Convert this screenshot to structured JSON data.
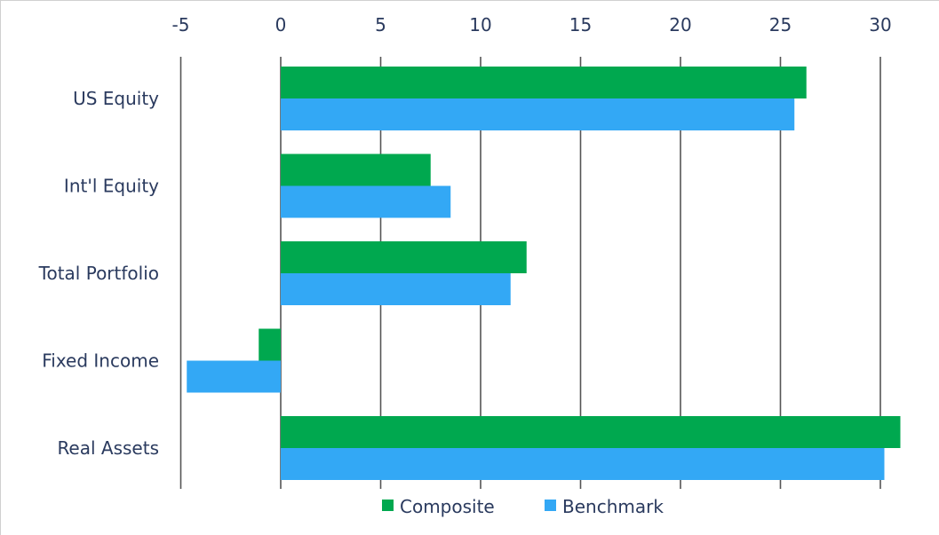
{
  "chart_data": {
    "type": "bar",
    "orientation": "horizontal",
    "categories": [
      "US Equity",
      "Int'l Equity",
      "Total Portfolio",
      "Fixed Income",
      "Real Assets"
    ],
    "series": [
      {
        "name": "Composite",
        "color": "#00a84f",
        "values": [
          26.3,
          7.5,
          12.3,
          -1.1,
          31.0
        ]
      },
      {
        "name": "Benchmark",
        "color": "#33a8f5",
        "values": [
          25.7,
          8.5,
          11.5,
          -4.7,
          30.2
        ]
      }
    ],
    "xlim": [
      -5,
      31
    ],
    "xticks": [
      -5,
      0,
      5,
      10,
      15,
      20,
      25,
      30
    ],
    "xtick_labels": [
      "-5",
      "0",
      "5",
      "10",
      "15",
      "20",
      "25",
      "30"
    ],
    "xaxis_position": "top",
    "grid": "vertical",
    "legend": {
      "placement": "bottom-center",
      "entries": [
        "Composite",
        "Benchmark"
      ]
    }
  }
}
